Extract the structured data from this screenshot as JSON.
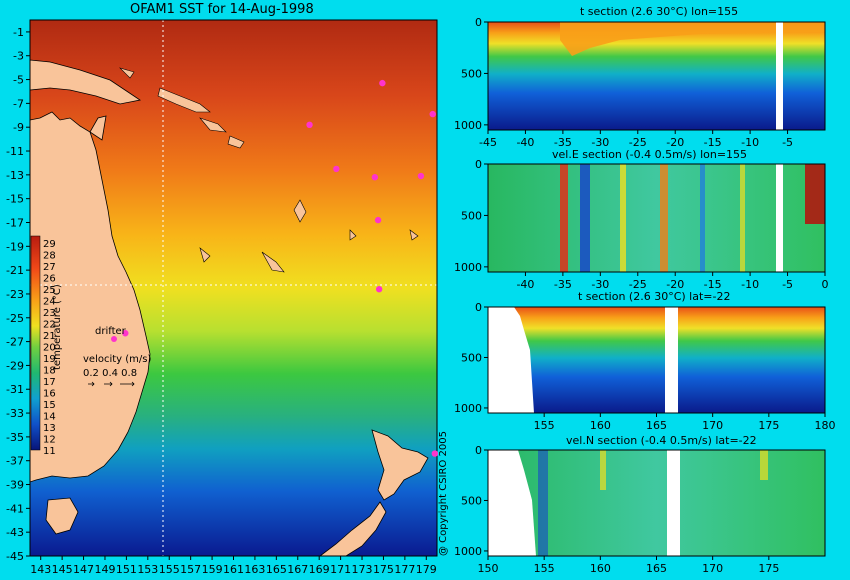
{
  "main_title": "OFAM1 SST for 14-Aug-1998",
  "copyright": "@ Copyright CSIRO 2005",
  "colors": {
    "background": "#00ddee",
    "land": "#f9c49a",
    "drifter": "#ff33cc"
  },
  "legend": {
    "label": "temperature (°C)",
    "ticks": [
      "29",
      "28",
      "27",
      "26",
      "25",
      "24",
      "23",
      "22",
      "21",
      "20",
      "19",
      "18",
      "17",
      "16",
      "15",
      "14",
      "13",
      "12",
      "11"
    ]
  },
  "annotations": {
    "drifter_label": "drifter",
    "velocity_label": "velocity (m/s)",
    "velocity_scale": "0.2 0.4 0.8"
  },
  "chart_data": [
    {
      "type": "heatmap",
      "title": "OFAM1 SST for 14-Aug-1998",
      "xticks": [
        "143",
        "145",
        "147",
        "149",
        "151",
        "153",
        "155",
        "157",
        "159",
        "161",
        "163",
        "165",
        "167",
        "169",
        "171",
        "173",
        "175",
        "177",
        "179"
      ],
      "yticks": [
        "-1",
        "-3",
        "-5",
        "-7",
        "-9",
        "-11",
        "-13",
        "-15",
        "-17",
        "-19",
        "-21",
        "-23",
        "-25",
        "-27",
        "-29",
        "-31",
        "-33",
        "-35",
        "-37",
        "-39",
        "-41",
        "-43",
        "-45"
      ],
      "xlim": [
        142,
        180
      ],
      "ylim": [
        -45,
        0
      ],
      "section_lines": {
        "lon": 155,
        "lat": -22
      },
      "drifters": [
        [
          174.9,
          -5.3
        ],
        [
          179.6,
          -7.9
        ],
        [
          168.1,
          -8.8
        ],
        [
          170.6,
          -12.5
        ],
        [
          174.2,
          -13.2
        ],
        [
          178.5,
          -13.1
        ],
        [
          174.5,
          -16.8
        ],
        [
          174.6,
          -22.6
        ],
        [
          150.9,
          -26.3
        ],
        [
          179.8,
          -36.4
        ]
      ]
    },
    {
      "type": "heatmap",
      "title": "t section (2.6     30°C) lon=155",
      "xticks": [
        "-45",
        "-40",
        "-35",
        "-30",
        "-25",
        "-20",
        "-15",
        "-10",
        "-5"
      ],
      "yticks": [
        "0",
        "500",
        "1000"
      ],
      "xlim": [
        -45,
        0
      ],
      "ylim": [
        1050,
        0
      ]
    },
    {
      "type": "heatmap",
      "title": "vel.E section (-0.4     0.5m/s) lon=155",
      "xticks": [
        "-40",
        "-35",
        "-30",
        "-25",
        "-20",
        "-15",
        "-10",
        "-5",
        "0"
      ],
      "yticks": [
        "0",
        "500",
        "1000"
      ],
      "xlim": [
        -45,
        0
      ],
      "ylim": [
        1050,
        0
      ]
    },
    {
      "type": "heatmap",
      "title": "t section (2.6     30°C) lat=-22",
      "xticks": [
        "155",
        "160",
        "165",
        "170",
        "175",
        "180"
      ],
      "yticks": [
        "0",
        "500",
        "1000"
      ],
      "xlim": [
        150,
        180
      ],
      "ylim": [
        1050,
        0
      ]
    },
    {
      "type": "heatmap",
      "title": "vel.N section (-0.4     0.5m/s) lat=-22",
      "xticks": [
        "150",
        "155",
        "160",
        "165",
        "170",
        "175"
      ],
      "yticks": [
        "0",
        "500",
        "1000"
      ],
      "xlim": [
        150,
        180
      ],
      "ylim": [
        1050,
        0
      ]
    }
  ]
}
